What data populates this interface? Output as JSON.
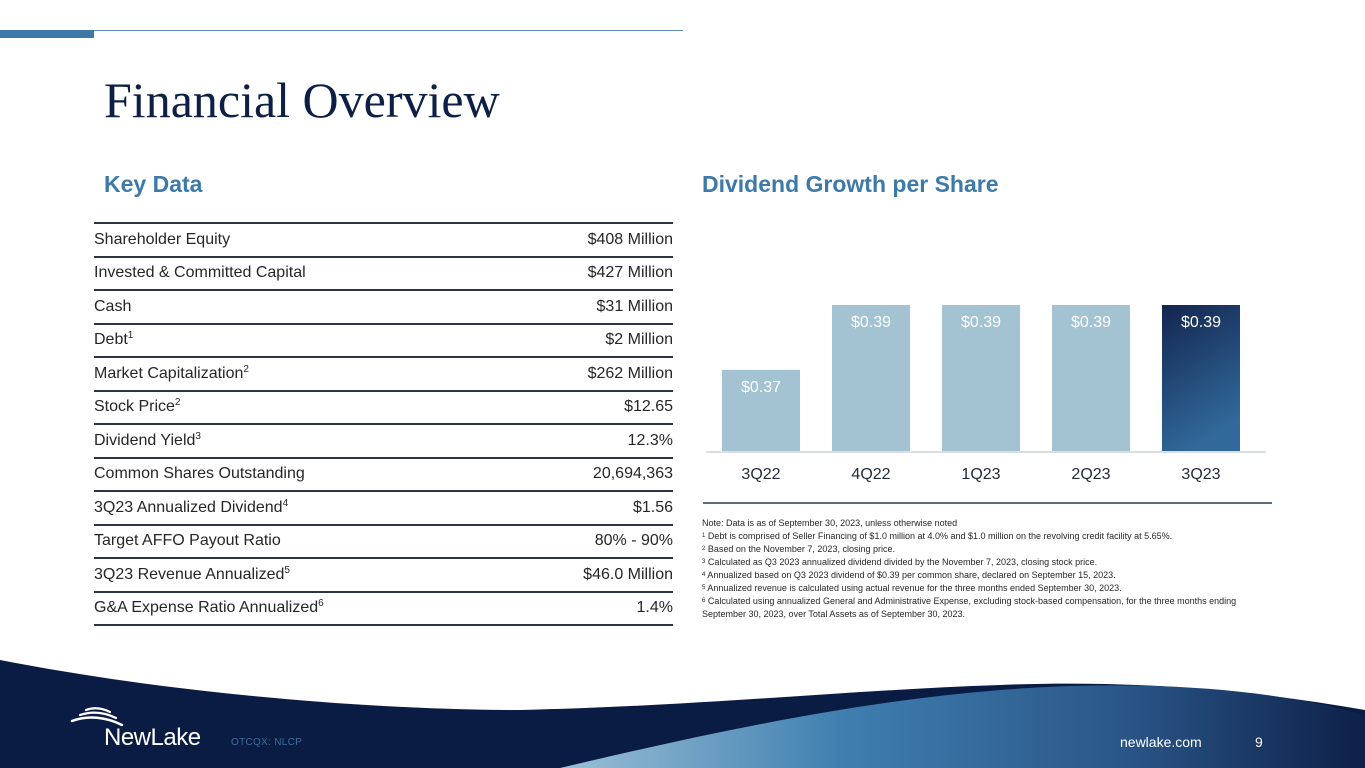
{
  "header": {
    "title": "Financial Overview"
  },
  "key_data": {
    "heading": "Key Data",
    "rows": [
      {
        "label": "Shareholder Equity",
        "sup": "",
        "value": "$408 Million"
      },
      {
        "label": "Invested & Committed Capital",
        "sup": "",
        "value": "$427 Million"
      },
      {
        "label": "Cash",
        "sup": "",
        "value": "$31 Million"
      },
      {
        "label": "Debt",
        "sup": "1",
        "value": "$2 Million"
      },
      {
        "label": "Market Capitalization",
        "sup": "2",
        "value": "$262 Million"
      },
      {
        "label": "Stock Price",
        "sup": "2",
        "value": "$12.65"
      },
      {
        "label": "Dividend Yield",
        "sup": "3",
        "value": "12.3%"
      },
      {
        "label": "Common Shares Outstanding",
        "sup": "",
        "value": "20,694,363"
      },
      {
        "label": "3Q23 Annualized Dividend",
        "sup": "4",
        "value": "$1.56"
      },
      {
        "label": "Target AFFO Payout Ratio",
        "sup": "",
        "value": "80% - 90%"
      },
      {
        "label": "3Q23 Revenue Annualized",
        "sup": "5",
        "value": "$46.0 Million"
      },
      {
        "label": "G&A Expense Ratio Annualized",
        "sup": "6",
        "value": "1.4%"
      }
    ]
  },
  "dividend": {
    "heading": "Dividend Growth per Share"
  },
  "chart_data": {
    "type": "bar",
    "title": "Dividend Growth per Share",
    "categories": [
      "3Q22",
      "4Q22",
      "1Q23",
      "2Q23",
      "3Q23"
    ],
    "values": [
      0.37,
      0.39,
      0.39,
      0.39,
      0.39
    ],
    "data_labels": [
      "$0.37",
      "$0.39",
      "$0.39",
      "$0.39",
      "$0.39"
    ],
    "xlabel": "",
    "ylabel": "",
    "ylim": [
      0.345,
      0.39
    ],
    "grid": false,
    "legend": "none",
    "colors": {
      "default": "#a3c3d2",
      "highlight_top": "#13254f",
      "highlight_bottom": "#31699a"
    },
    "highlight_index": 4
  },
  "notes": [
    {
      "sup": "",
      "text": "Note: Data is as of September 30, 2023, unless otherwise noted"
    },
    {
      "sup": "1",
      "text": "Debt is comprised of Seller Financing of $1.0 million at 4.0% and $1.0 million on the revolving credit facility at 5.65%."
    },
    {
      "sup": "2",
      "text": "Based on the November 7, 2023, closing price."
    },
    {
      "sup": "3",
      "text": "Calculated as Q3 2023 annualized dividend divided by the November 7, 2023, closing stock price."
    },
    {
      "sup": "4",
      "text": "Annualized based on Q3 2023 dividend of $0.39 per common share, declared on September 15, 2023."
    },
    {
      "sup": "5",
      "text": "Annualized revenue is calculated using actual revenue for the three months ended September 30, 2023."
    },
    {
      "sup": "6",
      "text": "Calculated using annualized General and Administrative Expense, excluding stock-based compensation, for the three months ending September 30, 2023, over Total Assets as of September 30, 2023."
    }
  ],
  "footer": {
    "logo_text": "NewLake",
    "ticker": "OTCQX: NLCP",
    "website": "newlake.com",
    "page_number": "9"
  },
  "colors": {
    "accent": "#3d7aa9",
    "navy": "#0b1c44",
    "title": "#0d1f45"
  }
}
